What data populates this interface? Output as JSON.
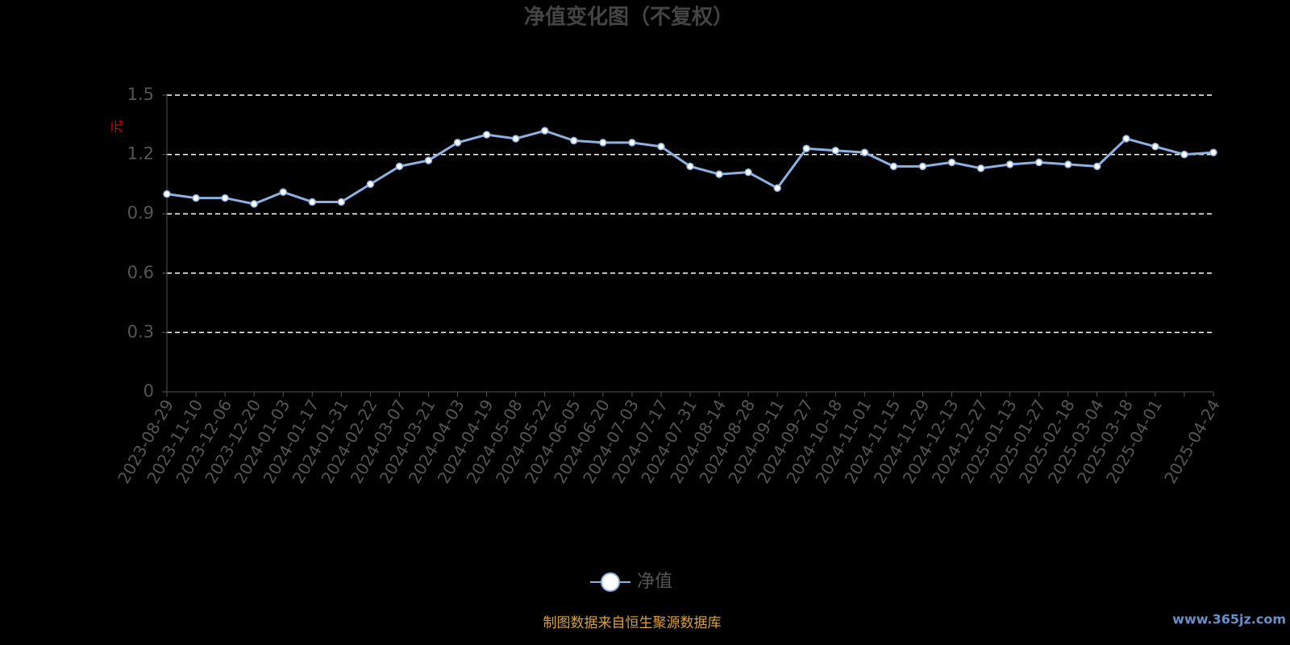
{
  "chart_data": {
    "type": "line",
    "title": "净值变化图（不复权）",
    "y_label": "元",
    "categories": [
      "2023-08-29",
      "2023-11-10",
      "2023-12-06",
      "2023-12-20",
      "2024-01-03",
      "2024-01-17",
      "2024-01-31",
      "2024-02-22",
      "2024-03-07",
      "2024-03-21",
      "2024-04-03",
      "2024-04-19",
      "2024-05-08",
      "2024-05-22",
      "2024-06-05",
      "2024-06-20",
      "2024-07-03",
      "2024-07-17",
      "2024-07-31",
      "2024-08-14",
      "2024-08-28",
      "2024-09-11",
      "2024-09-27",
      "2024-10-18",
      "2024-11-01",
      "2024-11-15",
      "2024-11-29",
      "2024-12-13",
      "2024-12-27",
      "2025-01-13",
      "2025-01-27",
      "2025-02-18",
      "2025-03-04",
      "2025-03-18",
      "2025-04-01",
      null,
      "2025-04-24"
    ],
    "series": [
      {
        "name": "净值",
        "color": "#8db1e2",
        "values": [
          1.0,
          0.98,
          0.98,
          0.95,
          1.01,
          0.96,
          0.96,
          1.05,
          1.14,
          1.17,
          1.26,
          1.3,
          1.28,
          1.32,
          1.27,
          1.26,
          1.26,
          1.24,
          1.14,
          1.1,
          1.11,
          1.03,
          1.23,
          1.22,
          1.21,
          1.14,
          1.14,
          1.16,
          1.13,
          1.15,
          1.16,
          1.15,
          1.14,
          1.28,
          1.24,
          1.2,
          1.21
        ]
      }
    ],
    "ylim": [
      0,
      1.5
    ],
    "yticks": [
      0,
      0.3,
      0.6,
      0.9,
      1.2,
      1.5
    ],
    "grid": true,
    "legend": "bottom",
    "source": "制图数据来自恒生聚源数据库",
    "watermark": "www.365jz.com"
  }
}
